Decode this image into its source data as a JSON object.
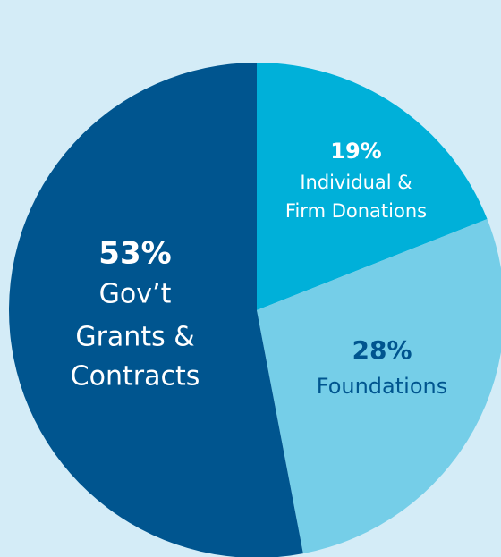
{
  "chart_data": {
    "type": "pie",
    "categories": [
      [
        "Individual &",
        "Firm Donations"
      ],
      [
        "Foundations"
      ],
      [
        "Gov’t",
        "Grants &",
        "Contracts"
      ]
    ],
    "values": [
      19,
      28,
      53
    ],
    "value_labels": [
      "19%",
      "28%",
      "53%"
    ],
    "colors": [
      "#00b0d9",
      "#75cee8",
      "#00558f"
    ],
    "label_colors": [
      "#ffffff",
      "#00558f",
      "#ffffff"
    ]
  }
}
